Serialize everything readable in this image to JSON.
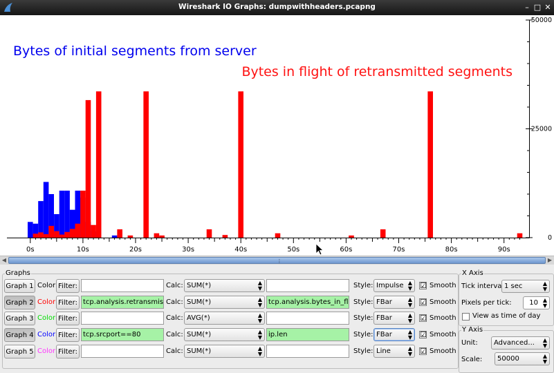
{
  "window": {
    "title": "Wireshark IO Graphs: dumpwithheaders.pcapng"
  },
  "annotations": {
    "blue_text": "Bytes of initial segments from server",
    "red_text": "Bytes in flight of retransmitted segments"
  },
  "colors": {
    "graph1": "#000000",
    "graph2": "#ff0000",
    "graph3": "#00dd00",
    "graph4": "#0000ff",
    "graph5": "#ff33ff"
  },
  "chart_data": {
    "type": "bar",
    "x_tick_labels": [
      "0s",
      "10s",
      "20s",
      "30s",
      "40s",
      "50s",
      "60s",
      "70s",
      "80s",
      "90s"
    ],
    "y_tick_labels": [
      "50000",
      "25000",
      "0"
    ],
    "xlim": [
      0,
      93.5
    ],
    "ylim": [
      0,
      50000
    ],
    "series": [
      {
        "name": "Graph 4",
        "color": "#0000ff",
        "x": [
          0,
          1,
          2,
          3,
          4,
          5,
          6,
          7,
          8,
          9,
          10,
          11,
          12,
          16
        ],
        "values": [
          3600,
          3200,
          8400,
          12800,
          10000,
          5400,
          10800,
          10800,
          6400,
          10800,
          9200,
          3600,
          1500,
          500
        ]
      },
      {
        "name": "Graph 2",
        "color": "#ff0000",
        "x": [
          1,
          2,
          3,
          4,
          5,
          6,
          7,
          8,
          9,
          10,
          11,
          12,
          13,
          17,
          19,
          22,
          24,
          25,
          34,
          37,
          40,
          47,
          61,
          67,
          76,
          93
        ],
        "values": [
          900,
          1200,
          800,
          2700,
          1500,
          700,
          1300,
          2000,
          3200,
          10800,
          31600,
          2900,
          33600,
          1900,
          500,
          33600,
          1000,
          500,
          1900,
          600,
          33600,
          1000,
          500,
          1900,
          33600,
          1000
        ]
      }
    ]
  },
  "graphs_panel": {
    "title": "Graphs",
    "color_label": "Color",
    "filter_button": "Filter:",
    "calc_label": "Calc:",
    "style_label": "Style:",
    "smooth_label": "Smooth",
    "rows": [
      {
        "button": "Graph 1",
        "filter": "",
        "calc": "SUM(*)",
        "field": "",
        "style": "Impulse",
        "smooth": "☑"
      },
      {
        "button": "Graph 2",
        "filter": "tcp.analysis.retransmission",
        "calc": "SUM(*)",
        "field": "tcp.analysis.bytes_in_flight",
        "style": "FBar",
        "smooth": "☑"
      },
      {
        "button": "Graph 3",
        "filter": "",
        "calc": "AVG(*)",
        "field": "",
        "style": "FBar",
        "smooth": "☑"
      },
      {
        "button": "Graph 4",
        "filter": "tcp.srcport==80",
        "calc": "SUM(*)",
        "field": "ip.len",
        "style": "FBar",
        "smooth": "☑"
      },
      {
        "button": "Graph 5",
        "filter": "",
        "calc": "SUM(*)",
        "field": "",
        "style": "Line",
        "smooth": "☑"
      }
    ]
  },
  "x_axis": {
    "title": "X Axis",
    "tick_interval_label": "Tick interval:",
    "tick_interval_value": "1 sec",
    "pixels_per_tick_label": "Pixels per tick:",
    "pixels_per_tick_value": "10",
    "view_time_of_day_label": "View as time of day",
    "view_time_of_day_checked": ""
  },
  "y_axis": {
    "title": "Y Axis",
    "unit_label": "Unit:",
    "unit_value": "Advanced...",
    "scale_label": "Scale:",
    "scale_value": "50000"
  }
}
